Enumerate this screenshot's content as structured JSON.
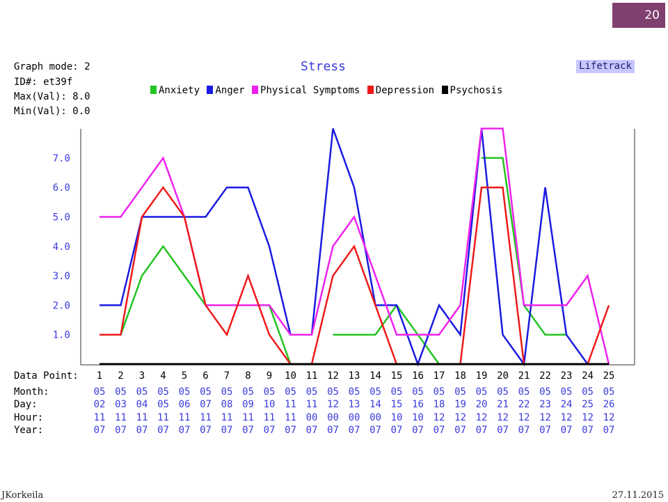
{
  "slide": {
    "page_number": "20",
    "author": "JKorkeila",
    "date": "27.11.2015"
  },
  "header": {
    "graph_mode": "Graph mode: 2",
    "id": "ID#: et39f",
    "max_val": "Max(Val): 8.0",
    "min_val": "Min(Val): 0.0",
    "title": "Stress",
    "brand": "Lifetrack"
  },
  "colors": {
    "Anxiety": "#22c422",
    "Anger": "#1a1ae0",
    "Physical Symptoms": "#ee22ee",
    "Depression": "#ee1a1a",
    "Psychosis": "#000000"
  },
  "chart_data": {
    "type": "line",
    "title": "Stress",
    "x": [
      1,
      2,
      3,
      4,
      5,
      6,
      7,
      8,
      9,
      10,
      11,
      12,
      13,
      14,
      15,
      16,
      17,
      18,
      19,
      20,
      21,
      22,
      23,
      24,
      25
    ],
    "y_ticks": [
      "7.0",
      "6.0",
      "5.0",
      "4.0",
      "3.0",
      "2.0",
      "1.0"
    ],
    "ylim": [
      0,
      8
    ],
    "grid": false,
    "legend_position": "top",
    "series": [
      {
        "name": "Anxiety",
        "values": [
          1,
          1,
          3,
          4,
          3,
          2,
          null,
          null,
          2,
          0,
          null,
          1,
          1,
          1,
          2,
          1,
          0,
          null,
          7,
          7,
          2,
          1,
          1,
          null,
          null
        ]
      },
      {
        "name": "Anger",
        "values": [
          2,
          2,
          5,
          5,
          5,
          5,
          6,
          6,
          4,
          1,
          1,
          8,
          6,
          2,
          2,
          0,
          2,
          1,
          8,
          1,
          0,
          6,
          1,
          0,
          null
        ]
      },
      {
        "name": "Physical Symptoms",
        "values": [
          5,
          5,
          6,
          7,
          5,
          2,
          2,
          2,
          2,
          1,
          1,
          4,
          5,
          3,
          1,
          1,
          1,
          2,
          8,
          8,
          2,
          2,
          2,
          3,
          0
        ]
      },
      {
        "name": "Depression",
        "values": [
          1,
          1,
          5,
          6,
          5,
          2,
          1,
          3,
          1,
          0,
          0,
          3,
          4,
          2,
          0,
          null,
          null,
          0,
          6,
          6,
          0,
          null,
          null,
          0,
          2
        ]
      },
      {
        "name": "Psychosis",
        "values": [
          0,
          0,
          0,
          0,
          0,
          0,
          0,
          0,
          0,
          0,
          0,
          0,
          0,
          0,
          0,
          0,
          0,
          0,
          0,
          0,
          0,
          0,
          0,
          0,
          0
        ]
      }
    ]
  },
  "table": {
    "row_labels": [
      "Data Point:",
      "Month:",
      "Day:",
      "Hour:",
      "Year:"
    ],
    "month": [
      "05",
      "05",
      "05",
      "05",
      "05",
      "05",
      "05",
      "05",
      "05",
      "05",
      "05",
      "05",
      "05",
      "05",
      "05",
      "05",
      "05",
      "05",
      "05",
      "05",
      "05",
      "05",
      "05",
      "05",
      "05"
    ],
    "day": [
      "02",
      "03",
      "04",
      "05",
      "06",
      "07",
      "08",
      "09",
      "10",
      "11",
      "11",
      "12",
      "13",
      "14",
      "15",
      "16",
      "18",
      "19",
      "20",
      "21",
      "22",
      "23",
      "24",
      "25",
      "26"
    ],
    "hour": [
      "11",
      "11",
      "11",
      "11",
      "11",
      "11",
      "11",
      "11",
      "11",
      "11",
      "00",
      "00",
      "00",
      "00",
      "10",
      "10",
      "12",
      "12",
      "12",
      "12",
      "12",
      "12",
      "12",
      "12",
      "12"
    ],
    "year": [
      "07",
      "07",
      "07",
      "07",
      "07",
      "07",
      "07",
      "07",
      "07",
      "07",
      "07",
      "07",
      "07",
      "07",
      "07",
      "07",
      "07",
      "07",
      "07",
      "07",
      "07",
      "07",
      "07",
      "07",
      "07"
    ]
  }
}
